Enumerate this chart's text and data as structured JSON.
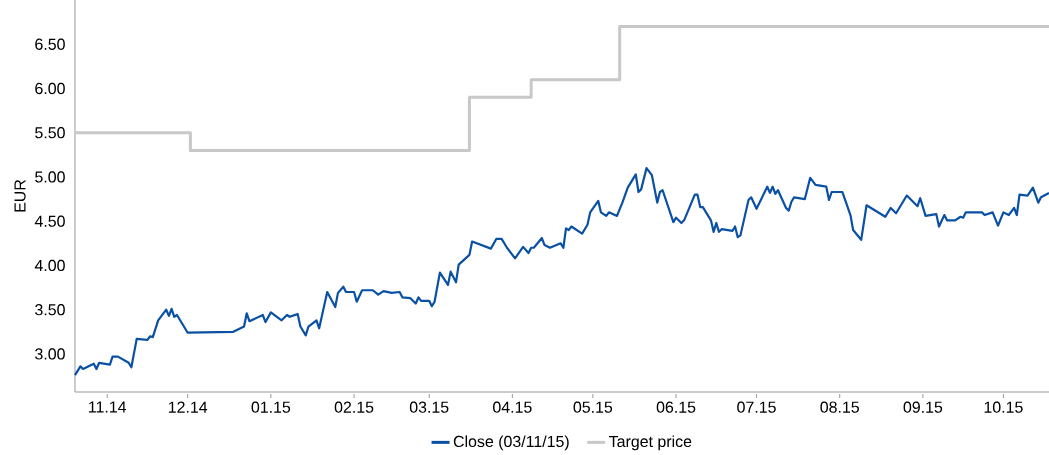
{
  "chart_data": {
    "type": "line",
    "ylabel": "EUR",
    "legend": "bottom",
    "grid": false,
    "marker": "none",
    "xlim": [
      "2014-10-20",
      "2015-10-18"
    ],
    "ylim": [
      2.57,
      7.0
    ],
    "xticks": [
      {
        "value": "2014-11-01",
        "label": "11.14"
      },
      {
        "value": "2014-12-01",
        "label": "12.14"
      },
      {
        "value": "2015-01-01",
        "label": "01.15"
      },
      {
        "value": "2015-02-01",
        "label": "02.15"
      },
      {
        "value": "2015-03-01",
        "label": "03.15"
      },
      {
        "value": "2015-04-01",
        "label": "04.15"
      },
      {
        "value": "2015-05-01",
        "label": "05.15"
      },
      {
        "value": "2015-06-01",
        "label": "06.15"
      },
      {
        "value": "2015-07-01",
        "label": "07.15"
      },
      {
        "value": "2015-08-01",
        "label": "08.15"
      },
      {
        "value": "2015-09-01",
        "label": "09.15"
      },
      {
        "value": "2015-10-01",
        "label": "10.15"
      }
    ],
    "yticks": [
      {
        "value": 3,
        "label": "3.00"
      },
      {
        "value": 3.5,
        "label": "3.50"
      },
      {
        "value": 4,
        "label": "4.00"
      },
      {
        "value": 4.5,
        "label": "4.50"
      },
      {
        "value": 5,
        "label": "5.00"
      },
      {
        "value": 5.5,
        "label": "5.50"
      },
      {
        "value": 6,
        "label": "6.00"
      },
      {
        "value": 6.5,
        "label": "6.50"
      }
    ],
    "series": [
      {
        "name": "Close (03/11/15)",
        "color": "#0a50a5",
        "x": [
          "2014-10-20",
          "2014-10-22",
          "2014-10-23",
          "2014-10-27",
          "2014-10-28",
          "2014-10-29",
          "2014-11-02",
          "2014-11-03",
          "2014-11-05",
          "2014-11-09",
          "2014-11-10",
          "2014-11-12",
          "2014-11-16",
          "2014-11-17",
          "2014-11-18",
          "2014-11-20",
          "2014-11-23",
          "2014-11-24",
          "2014-11-25",
          "2014-11-26",
          "2014-11-27",
          "2014-12-01",
          "2014-12-18",
          "2014-12-22",
          "2014-12-23",
          "2014-12-24",
          "2014-12-29",
          "2014-12-30",
          "2015-01-01",
          "2015-01-05",
          "2015-01-07",
          "2015-01-08",
          "2015-01-11",
          "2015-01-12",
          "2015-01-14",
          "2015-01-15",
          "2015-01-18",
          "2015-01-19",
          "2015-01-22",
          "2015-01-25",
          "2015-01-26",
          "2015-01-28",
          "2015-01-29",
          "2015-02-01",
          "2015-02-02",
          "2015-02-04",
          "2015-02-08",
          "2015-02-10",
          "2015-02-12",
          "2015-02-15",
          "2015-02-18",
          "2015-02-19",
          "2015-02-22",
          "2015-02-24",
          "2015-02-25",
          "2015-02-26",
          "2015-03-01",
          "2015-03-02",
          "2015-03-03",
          "2015-03-05",
          "2015-03-08",
          "2015-03-09",
          "2015-03-11",
          "2015-03-12",
          "2015-03-16",
          "2015-03-17",
          "2015-03-24",
          "2015-03-26",
          "2015-03-28",
          "2015-03-30",
          "2015-04-02",
          "2015-04-05",
          "2015-04-07",
          "2015-04-08",
          "2015-04-09",
          "2015-04-12",
          "2015-04-13",
          "2015-04-15",
          "2015-04-19",
          "2015-04-20",
          "2015-04-21",
          "2015-04-22",
          "2015-04-23",
          "2015-04-27",
          "2015-04-29",
          "2015-04-30",
          "2015-05-03",
          "2015-05-04",
          "2015-05-06",
          "2015-05-07",
          "2015-05-10",
          "2015-05-12",
          "2015-05-14",
          "2015-05-17",
          "2015-05-18",
          "2015-05-19",
          "2015-05-21",
          "2015-05-23",
          "2015-05-25",
          "2015-05-26",
          "2015-05-27",
          "2015-05-31",
          "2015-06-01",
          "2015-06-03",
          "2015-06-04",
          "2015-06-08",
          "2015-06-09",
          "2015-06-10",
          "2015-06-11",
          "2015-06-14",
          "2015-06-15",
          "2015-06-16",
          "2015-06-17",
          "2015-06-18",
          "2015-06-22",
          "2015-06-23",
          "2015-06-24",
          "2015-06-25",
          "2015-06-28",
          "2015-06-29",
          "2015-07-01",
          "2015-07-05",
          "2015-07-06",
          "2015-07-07",
          "2015-07-08",
          "2015-07-09",
          "2015-07-12",
          "2015-07-13",
          "2015-07-14",
          "2015-07-15",
          "2015-07-19",
          "2015-07-21",
          "2015-07-23",
          "2015-07-27",
          "2015-07-28",
          "2015-07-29",
          "2015-08-02",
          "2015-08-05",
          "2015-08-06",
          "2015-08-09",
          "2015-08-11",
          "2015-08-18",
          "2015-08-20",
          "2015-08-22",
          "2015-08-26",
          "2015-08-30",
          "2015-08-31",
          "2015-09-02",
          "2015-09-06",
          "2015-09-07",
          "2015-09-09",
          "2015-09-10",
          "2015-09-13",
          "2015-09-15",
          "2015-09-16",
          "2015-09-17",
          "2015-09-23",
          "2015-09-24",
          "2015-09-27",
          "2015-09-29",
          "2015-10-01",
          "2015-10-03",
          "2015-10-05",
          "2015-10-06",
          "2015-10-07",
          "2015-10-10",
          "2015-10-12",
          "2015-10-14",
          "2015-10-15",
          "2015-10-18"
        ],
        "values": [
          2.76,
          2.86,
          2.83,
          2.89,
          2.83,
          2.9,
          2.88,
          2.97,
          2.97,
          2.9,
          2.85,
          3.17,
          3.16,
          3.2,
          3.19,
          3.38,
          3.5,
          3.43,
          3.51,
          3.42,
          3.44,
          3.24,
          3.25,
          3.31,
          3.46,
          3.37,
          3.44,
          3.36,
          3.47,
          3.38,
          3.44,
          3.42,
          3.45,
          3.31,
          3.21,
          3.31,
          3.38,
          3.29,
          3.7,
          3.53,
          3.69,
          3.76,
          3.7,
          3.7,
          3.59,
          3.72,
          3.72,
          3.67,
          3.71,
          3.69,
          3.7,
          3.64,
          3.63,
          3.57,
          3.64,
          3.6,
          3.6,
          3.54,
          3.59,
          3.92,
          3.78,
          3.93,
          3.81,
          4.01,
          4.12,
          4.27,
          4.19,
          4.3,
          4.3,
          4.2,
          4.08,
          4.21,
          4.14,
          4.2,
          4.2,
          4.31,
          4.23,
          4.2,
          4.25,
          4.2,
          4.42,
          4.4,
          4.44,
          4.36,
          4.46,
          4.6,
          4.73,
          4.6,
          4.56,
          4.6,
          4.56,
          4.71,
          4.88,
          5.03,
          4.83,
          4.86,
          5.1,
          5.02,
          4.71,
          4.83,
          4.85,
          4.49,
          4.54,
          4.48,
          4.51,
          4.8,
          4.8,
          4.66,
          4.66,
          4.51,
          4.38,
          4.48,
          4.38,
          4.41,
          4.39,
          4.44,
          4.32,
          4.34,
          4.74,
          4.77,
          4.64,
          4.89,
          4.82,
          4.89,
          4.81,
          4.85,
          4.65,
          4.62,
          4.72,
          4.77,
          4.75,
          4.99,
          4.91,
          4.89,
          4.74,
          4.83,
          4.83,
          4.57,
          4.4,
          4.29,
          4.68,
          4.55,
          4.65,
          4.59,
          4.79,
          4.67,
          4.76,
          4.56,
          4.58,
          4.44,
          4.57,
          4.51,
          4.51,
          4.55,
          4.54,
          4.6,
          4.6,
          4.57,
          4.6,
          4.45,
          4.6,
          4.57,
          4.65,
          4.57,
          4.8,
          4.79,
          4.88,
          4.71,
          4.77,
          4.82
        ]
      },
      {
        "name": "Target price",
        "type": "step",
        "color": "#c8c8c8",
        "x": [
          "2014-10-20",
          "2014-12-02",
          "2015-03-16",
          "2015-04-08",
          "2015-05-11",
          "2015-10-18"
        ],
        "values": [
          5.5,
          5.3,
          5.9,
          6.1,
          6.7,
          6.7
        ]
      }
    ]
  }
}
